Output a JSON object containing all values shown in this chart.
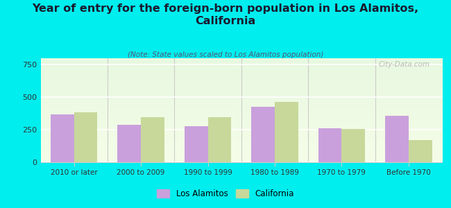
{
  "title": "Year of entry for the foreign-born population in Los Alamitos,\nCalifornia",
  "subtitle": "(Note: State values scaled to Los Alamitos population)",
  "categories": [
    "2010 or later",
    "2000 to 2009",
    "1990 to 1999",
    "1980 to 1989",
    "1970 to 1979",
    "Before 1970"
  ],
  "los_alamitos": [
    370,
    290,
    275,
    425,
    260,
    355
  ],
  "california": [
    385,
    345,
    345,
    465,
    255,
    170
  ],
  "bar_color_la": "#c9a0dc",
  "bar_color_ca": "#c8d89a",
  "background_color": "#00eeee",
  "ylim": [
    0,
    800
  ],
  "yticks": [
    0,
    250,
    500,
    750
  ],
  "watermark": "City-Data.com",
  "legend_label_la": "Los Alamitos",
  "legend_label_ca": "California",
  "title_fontsize": 11.5,
  "subtitle_fontsize": 7.5,
  "bar_width": 0.35
}
